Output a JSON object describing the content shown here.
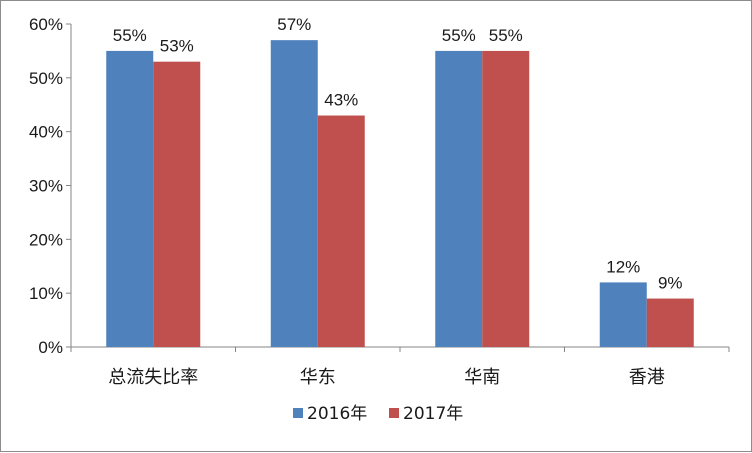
{
  "chart_data": {
    "type": "bar",
    "categories": [
      "总流失比率",
      "华东",
      "华南",
      "香港"
    ],
    "series": [
      {
        "name": "2016年",
        "values": [
          55,
          57,
          55,
          12
        ],
        "color": "#4F81BD"
      },
      {
        "name": "2017年",
        "values": [
          53,
          43,
          55,
          9
        ],
        "color": "#C0504D"
      }
    ],
    "ylim": [
      0,
      60
    ],
    "yticks": [
      0,
      10,
      20,
      30,
      40,
      50,
      60
    ],
    "ytick_labels": [
      "0%",
      "10%",
      "20%",
      "30%",
      "40%",
      "50%",
      "60%"
    ],
    "value_suffix": "%",
    "grid": false,
    "legend_position": "bottom"
  }
}
